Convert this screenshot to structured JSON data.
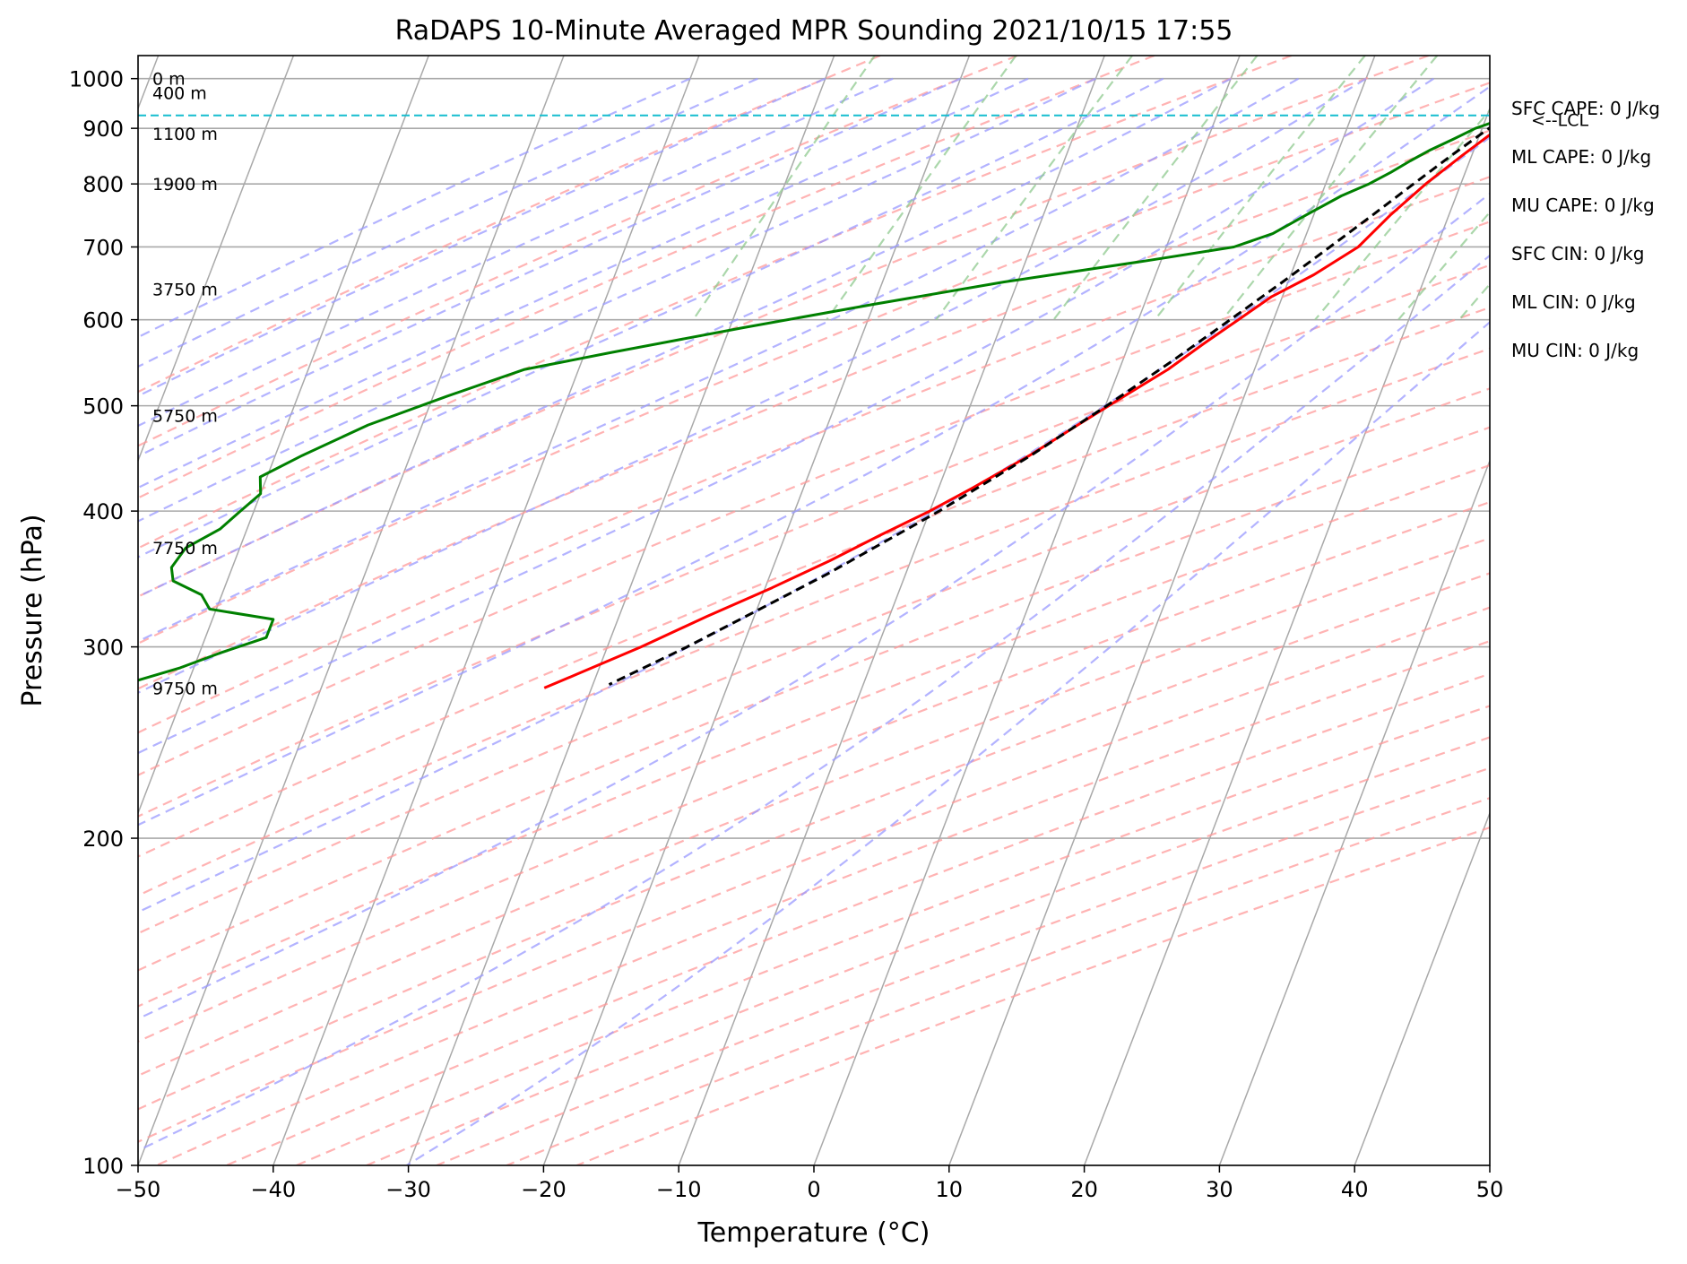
{
  "chart_data": {
    "type": "line",
    "subtype": "skew-T log-P",
    "title": "RaDAPS 10-Minute Averaged MPR Sounding 2021/10/15 17:55",
    "xlabel": "Temperature (°C)",
    "ylabel": "Pressure (hPa)",
    "xlim": [
      -50,
      50
    ],
    "ylim": [
      1050,
      100
    ],
    "y_scale": "log",
    "x_ticks": [
      "−50",
      "−40",
      "−30",
      "−20",
      "−10",
      "0",
      "10",
      "20",
      "30",
      "40",
      "50"
    ],
    "y_ticks": [
      "100",
      "200",
      "300",
      "400",
      "500",
      "600",
      "700",
      "800",
      "900",
      "1000"
    ],
    "grid": true,
    "series": [
      {
        "role": "temperature",
        "color": "#ff0000",
        "points": [
          {
            "p": 990,
            "t": 26.4
          },
          {
            "p": 975,
            "t": 24.4
          },
          {
            "p": 955,
            "t": 23.4
          },
          {
            "p": 925,
            "t": 22.4
          },
          {
            "p": 900,
            "t": 21.2
          },
          {
            "p": 850,
            "t": 19.3
          },
          {
            "p": 800,
            "t": 17.4
          },
          {
            "p": 750,
            "t": 15.7
          },
          {
            "p": 700,
            "t": 14.2
          },
          {
            "p": 660,
            "t": 11.7
          },
          {
            "p": 630,
            "t": 9.2
          },
          {
            "p": 600,
            "t": 7.4
          },
          {
            "p": 570,
            "t": 5.5
          },
          {
            "p": 540,
            "t": 3.6
          },
          {
            "p": 510,
            "t": 1.1
          },
          {
            "p": 480,
            "t": -1.5
          },
          {
            "p": 450,
            "t": -4.2
          },
          {
            "p": 420,
            "t": -7.5
          },
          {
            "p": 400,
            "t": -10.0
          },
          {
            "p": 380,
            "t": -13.0
          },
          {
            "p": 360,
            "t": -16.0
          },
          {
            "p": 340,
            "t": -19.5
          },
          {
            "p": 320,
            "t": -23.5
          },
          {
            "p": 300,
            "t": -27.5
          },
          {
            "p": 283,
            "t": -31.5
          },
          {
            "p": 275,
            "t": -33.5
          }
        ]
      },
      {
        "role": "dewpoint",
        "color": "#008000",
        "points": [
          {
            "p": 990,
            "t": 21.8
          },
          {
            "p": 985,
            "t": 22.6
          },
          {
            "p": 970,
            "t": 22.7
          },
          {
            "p": 960,
            "t": 23.1
          },
          {
            "p": 950,
            "t": 23.6
          },
          {
            "p": 935,
            "t": 22.6
          },
          {
            "p": 920,
            "t": 21.4
          },
          {
            "p": 900,
            "t": 19.5
          },
          {
            "p": 880,
            "t": 18.2
          },
          {
            "p": 860,
            "t": 16.8
          },
          {
            "p": 840,
            "t": 15.6
          },
          {
            "p": 820,
            "t": 14.5
          },
          {
            "p": 800,
            "t": 13.2
          },
          {
            "p": 780,
            "t": 11.5
          },
          {
            "p": 750,
            "t": 9.5
          },
          {
            "p": 720,
            "t": 7.5
          },
          {
            "p": 700,
            "t": 5.0
          },
          {
            "p": 680,
            "t": -1.0
          },
          {
            "p": 650,
            "t": -11.0
          },
          {
            "p": 620,
            "t": -20.0
          },
          {
            "p": 590,
            "t": -29.0
          },
          {
            "p": 560,
            "t": -38.0
          },
          {
            "p": 540,
            "t": -44.0
          },
          {
            "p": 510,
            "t": -49.0
          },
          {
            "p": 480,
            "t": -54.0
          },
          {
            "p": 450,
            "t": -58.0
          },
          {
            "p": 430,
            "t": -60.5
          },
          {
            "p": 415,
            "t": -60.0
          },
          {
            "p": 400,
            "t": -61.0
          },
          {
            "p": 385,
            "t": -62.0
          },
          {
            "p": 370,
            "t": -64.0
          },
          {
            "p": 355,
            "t": -64.5
          },
          {
            "p": 345,
            "t": -64.0
          },
          {
            "p": 335,
            "t": -61.5
          },
          {
            "p": 325,
            "t": -60.5
          },
          {
            "p": 318,
            "t": -55.5
          },
          {
            "p": 306,
            "t": -55.5
          },
          {
            "p": 296,
            "t": -58.5
          },
          {
            "p": 287,
            "t": -61.0
          },
          {
            "p": 275,
            "t": -65.5
          }
        ]
      },
      {
        "role": "parcel",
        "color": "#000000",
        "dashed": true,
        "points": [
          {
            "p": 990,
            "t": 26.4
          },
          {
            "p": 960,
            "t": 23.5
          },
          {
            "p": 925,
            "t": 21.7
          },
          {
            "p": 900,
            "t": 20.5
          },
          {
            "p": 850,
            "t": 18.5
          },
          {
            "p": 800,
            "t": 16.5
          },
          {
            "p": 750,
            "t": 14.4
          },
          {
            "p": 700,
            "t": 12.1
          },
          {
            "p": 650,
            "t": 9.6
          },
          {
            "p": 600,
            "t": 6.8
          },
          {
            "p": 550,
            "t": 3.7
          },
          {
            "p": 500,
            "t": 0.1
          },
          {
            "p": 450,
            "t": -4.1
          },
          {
            "p": 400,
            "t": -9.3
          },
          {
            "p": 350,
            "t": -15.8
          },
          {
            "p": 300,
            "t": -24.1
          },
          {
            "p": 277,
            "t": -28.8
          }
        ]
      }
    ],
    "lcl": {
      "p": 925,
      "label": "<--LCL",
      "color": "#17becf"
    },
    "height_labels": [
      {
        "p": 275,
        "label": "9750 m"
      },
      {
        "p": 370,
        "label": "7750 m"
      },
      {
        "p": 490,
        "label": "5750 m"
      },
      {
        "p": 640,
        "label": "3750 m"
      },
      {
        "p": 800,
        "label": "1900 m"
      },
      {
        "p": 890,
        "label": "1100 m"
      },
      {
        "p": 970,
        "label": "400 m"
      },
      {
        "p": 1000,
        "label": "0 m"
      }
    ],
    "indices": [
      {
        "label": "SFC CAPE: 0 J/kg"
      },
      {
        "label": "ML CAPE: 0 J/kg"
      },
      {
        "label": "MU CAPE: 0 J/kg"
      },
      {
        "label": "SFC CIN: 0 J/kg"
      },
      {
        "label": "ML CIN: 0 J/kg"
      },
      {
        "label": "MU CIN: 0 J/kg"
      }
    ],
    "colors": {
      "isotherm": "#a9a9a9",
      "dry_adiabat": "#ff9999",
      "moist_adiabat": "#9999ff",
      "mixing_ratio": "#8fc98f",
      "isobar": "#a9a9a9"
    }
  }
}
